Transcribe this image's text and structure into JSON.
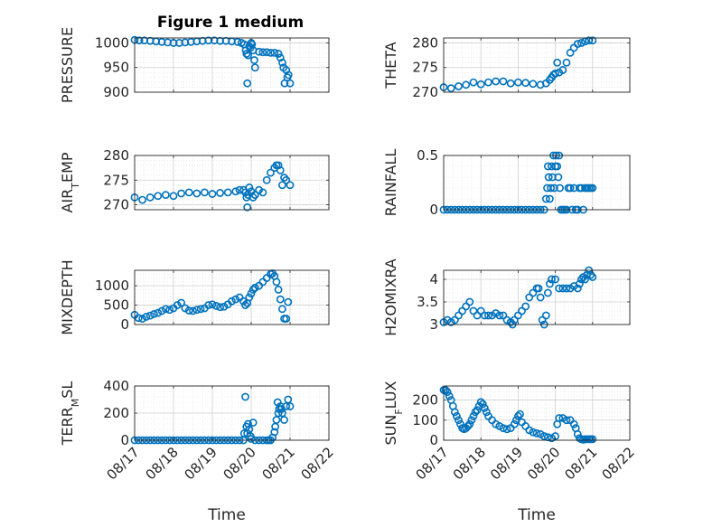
{
  "figure": {
    "title": "Figure 1 medium",
    "marker_color": "#0072BD",
    "grid": true,
    "xlabel_left": "Time",
    "xlabel_right": "Time"
  },
  "chart_data": [
    {
      "type": "scatter",
      "ylabel": "PRESSURE",
      "ylim": [
        900,
        1010
      ],
      "yticks": [
        900,
        950,
        1000
      ],
      "xlim": [
        0,
        5
      ],
      "x": [
        0,
        0.12,
        0.25,
        0.4,
        0.55,
        0.7,
        0.85,
        1,
        1.15,
        1.3,
        1.45,
        1.6,
        1.75,
        1.9,
        2.05,
        2.2,
        2.35,
        2.5,
        2.65,
        2.75,
        2.82,
        2.86,
        2.88,
        2.9,
        2.92,
        2.95,
        2.98,
        3,
        3.02,
        3.05,
        3.08,
        3.1,
        3.2,
        3.3,
        3.4,
        3.5,
        3.6,
        3.7,
        3.75,
        3.8,
        3.83,
        3.86,
        3.9,
        3.93,
        3.96,
        4
      ],
      "y": [
        1006,
        1005,
        1005,
        1004,
        1003,
        1002,
        1001,
        1000,
        1000,
        1001,
        1002,
        1003,
        1004,
        1005,
        1005,
        1004,
        1004,
        1003,
        1002,
        1000,
        997,
        985,
        978,
        918,
        975,
        993,
        990,
        1000,
        997,
        985,
        965,
        950,
        982,
        981,
        981,
        980,
        980,
        978,
        970,
        960,
        950,
        918,
        945,
        930,
        935,
        918
      ]
    },
    {
      "type": "scatter",
      "ylabel": "THETA",
      "ylim": [
        270,
        281
      ],
      "yticks": [
        270,
        275,
        280
      ],
      "xlim": [
        0,
        5
      ],
      "x": [
        0,
        0.2,
        0.4,
        0.6,
        0.8,
        1,
        1.2,
        1.4,
        1.6,
        1.8,
        2,
        2.2,
        2.4,
        2.6,
        2.75,
        2.85,
        2.9,
        2.95,
        3,
        3.05,
        3.1,
        3.2,
        3.3,
        3.4,
        3.5,
        3.6,
        3.7,
        3.8,
        3.9,
        4
      ],
      "y": [
        271,
        270.8,
        271.2,
        271.5,
        272,
        271.6,
        272,
        272.2,
        272.2,
        271.8,
        272,
        271.9,
        271.7,
        271.5,
        271.8,
        272.5,
        273,
        273.5,
        273.8,
        276,
        274,
        274.5,
        276,
        278,
        279,
        279.8,
        280,
        280.3,
        280.5,
        280.5
      ]
    },
    {
      "type": "scatter",
      "ylabel": "AIR_TEMP",
      "ylim": [
        269,
        280
      ],
      "yticks": [
        270,
        275,
        280
      ],
      "xlim": [
        0,
        5
      ],
      "x": [
        0,
        0.2,
        0.4,
        0.6,
        0.8,
        1,
        1.2,
        1.4,
        1.6,
        1.8,
        2,
        2.2,
        2.4,
        2.6,
        2.7,
        2.8,
        2.85,
        2.88,
        2.9,
        2.92,
        2.95,
        3,
        3.05,
        3.1,
        3.2,
        3.3,
        3.4,
        3.5,
        3.6,
        3.65,
        3.7,
        3.75,
        3.8,
        3.85,
        3.9,
        4
      ],
      "y": [
        271.5,
        271,
        271.5,
        271.8,
        272,
        271.8,
        272.3,
        272.5,
        272.3,
        272.5,
        272.2,
        272.4,
        272.5,
        272.7,
        273,
        273,
        272.5,
        271.5,
        269.5,
        272,
        273.5,
        272.7,
        271.5,
        272,
        273,
        272.5,
        275,
        276.5,
        277.5,
        278,
        278,
        277,
        274,
        275.5,
        275,
        274
      ]
    },
    {
      "type": "scatter",
      "ylabel": "RAINFALL",
      "ylim": [
        0,
        0.5
      ],
      "yticks": [
        0,
        0.5
      ],
      "xlim": [
        0,
        5
      ],
      "x": [
        0,
        0.1,
        0.2,
        0.3,
        0.4,
        0.5,
        0.6,
        0.7,
        0.8,
        0.9,
        1,
        1.1,
        1.2,
        1.3,
        1.4,
        1.5,
        1.6,
        1.7,
        1.8,
        1.9,
        2,
        2.1,
        2.2,
        2.3,
        2.4,
        2.5,
        2.6,
        2.7,
        2.75,
        2.78,
        2.8,
        2.82,
        2.85,
        2.88,
        2.9,
        2.92,
        2.95,
        2.97,
        3,
        3.02,
        3.05,
        3.08,
        3.1,
        3.12,
        3.15,
        3.2,
        3.25,
        3.3,
        3.35,
        3.4,
        3.45,
        3.5,
        3.55,
        3.6,
        3.65,
        3.7,
        3.75,
        3.8,
        3.85,
        3.9,
        3.95,
        4
      ],
      "y": [
        0,
        0,
        0,
        0,
        0,
        0,
        0,
        0,
        0,
        0,
        0,
        0,
        0,
        0,
        0,
        0,
        0,
        0,
        0,
        0,
        0,
        0,
        0,
        0,
        0,
        0,
        0,
        0,
        0.1,
        0.2,
        0.4,
        0.3,
        0.1,
        0.2,
        0.4,
        0.3,
        0.5,
        0.2,
        0.4,
        0.5,
        0.4,
        0.3,
        0.5,
        0.2,
        0,
        0,
        0,
        0,
        0.2,
        0.2,
        0,
        0.2,
        0,
        0,
        0.2,
        0.2,
        0,
        0.2,
        0.2,
        0.2,
        0.2,
        0.2
      ]
    },
    {
      "type": "scatter",
      "ylabel": "MIXDEPTH",
      "ylim": [
        0,
        1400
      ],
      "yticks": [
        0,
        500,
        1000
      ],
      "xlim": [
        0,
        5
      ],
      "x": [
        0,
        0.1,
        0.2,
        0.3,
        0.4,
        0.5,
        0.6,
        0.7,
        0.8,
        0.9,
        1,
        1.1,
        1.2,
        1.3,
        1.4,
        1.5,
        1.6,
        1.7,
        1.8,
        1.9,
        2,
        2.1,
        2.2,
        2.3,
        2.4,
        2.5,
        2.6,
        2.7,
        2.8,
        2.85,
        2.9,
        2.95,
        3,
        3.05,
        3.1,
        3.2,
        3.3,
        3.4,
        3.5,
        3.55,
        3.6,
        3.65,
        3.7,
        3.75,
        3.8,
        3.85,
        3.9,
        3.95
      ],
      "y": [
        250,
        170,
        150,
        200,
        230,
        270,
        300,
        350,
        400,
        380,
        420,
        500,
        560,
        420,
        360,
        350,
        380,
        400,
        420,
        500,
        520,
        480,
        450,
        460,
        520,
        600,
        650,
        700,
        600,
        500,
        550,
        700,
        800,
        900,
        950,
        1000,
        1100,
        1200,
        1300,
        1320,
        1250,
        1100,
        900,
        650,
        400,
        150,
        150,
        580
      ]
    },
    {
      "type": "scatter",
      "ylabel": "H2OMIXRA",
      "ylim": [
        3,
        4.2
      ],
      "yticks": [
        3,
        3.5,
        4
      ],
      "xlim": [
        0,
        5
      ],
      "x": [
        0,
        0.1,
        0.2,
        0.3,
        0.4,
        0.5,
        0.6,
        0.7,
        0.8,
        0.9,
        1,
        1.1,
        1.2,
        1.3,
        1.4,
        1.5,
        1.6,
        1.7,
        1.8,
        1.85,
        1.9,
        2,
        2.1,
        2.2,
        2.3,
        2.4,
        2.5,
        2.55,
        2.6,
        2.65,
        2.7,
        2.75,
        2.8,
        2.85,
        2.9,
        3,
        3.1,
        3.2,
        3.3,
        3.4,
        3.5,
        3.6,
        3.65,
        3.7,
        3.75,
        3.8,
        3.85,
        3.9,
        3.95,
        4
      ],
      "y": [
        3.05,
        3.1,
        3.05,
        3.1,
        3.2,
        3.3,
        3.4,
        3.5,
        3.3,
        3.2,
        3.3,
        3.2,
        3.2,
        3.2,
        3.25,
        3.2,
        3.2,
        3.1,
        3.05,
        3,
        3.1,
        3.2,
        3.3,
        3.4,
        3.6,
        3.7,
        3.8,
        3.8,
        3.6,
        3.1,
        3.0,
        3.2,
        3.7,
        3.9,
        4.0,
        4.0,
        3.8,
        3.8,
        3.8,
        3.8,
        3.85,
        3.8,
        3.9,
        4.0,
        4.05,
        4.0,
        4.1,
        4.2,
        4.1,
        4.05
      ]
    },
    {
      "type": "scatter",
      "ylabel": "TERR_MSL",
      "ylim": [
        0,
        400
      ],
      "yticks": [
        0,
        200,
        400
      ],
      "xlim": [
        0,
        5
      ],
      "x": [
        0,
        0.1,
        0.2,
        0.3,
        0.4,
        0.5,
        0.6,
        0.7,
        0.8,
        0.9,
        1,
        1.1,
        1.2,
        1.3,
        1.4,
        1.5,
        1.6,
        1.7,
        1.8,
        1.9,
        2,
        2.1,
        2.2,
        2.3,
        2.4,
        2.5,
        2.6,
        2.7,
        2.8,
        2.82,
        2.85,
        2.88,
        2.9,
        2.92,
        2.95,
        2.98,
        3,
        3.05,
        3.1,
        3.2,
        3.3,
        3.4,
        3.45,
        3.5,
        3.55,
        3.6,
        3.62,
        3.65,
        3.68,
        3.7,
        3.72,
        3.75,
        3.78,
        3.8,
        3.85,
        3.9,
        3.95,
        4
      ],
      "y": [
        0,
        0,
        0,
        0,
        0,
        0,
        0,
        0,
        0,
        0,
        0,
        0,
        0,
        0,
        0,
        0,
        0,
        0,
        0,
        0,
        0,
        0,
        0,
        0,
        0,
        0,
        0,
        0,
        0,
        50,
        320,
        100,
        50,
        120,
        80,
        30,
        10,
        130,
        0,
        0,
        0,
        0,
        0,
        0,
        20,
        60,
        100,
        150,
        280,
        200,
        230,
        250,
        230,
        200,
        150,
        250,
        300,
        250
      ]
    },
    {
      "type": "scatter",
      "ylabel": "SUN_FLUX",
      "ylim": [
        0,
        270
      ],
      "yticks": [
        0,
        100,
        200
      ],
      "xlim": [
        0,
        5
      ],
      "x": [
        0,
        0.05,
        0.1,
        0.15,
        0.2,
        0.25,
        0.3,
        0.35,
        0.4,
        0.45,
        0.5,
        0.55,
        0.6,
        0.65,
        0.7,
        0.75,
        0.8,
        0.85,
        0.9,
        0.95,
        1,
        1.05,
        1.1,
        1.15,
        1.2,
        1.3,
        1.4,
        1.5,
        1.6,
        1.7,
        1.8,
        1.9,
        1.95,
        2,
        2.05,
        2.1,
        2.2,
        2.3,
        2.4,
        2.5,
        2.6,
        2.7,
        2.8,
        2.9,
        3,
        3.05,
        3.1,
        3.2,
        3.3,
        3.4,
        3.5,
        3.55,
        3.6,
        3.65,
        3.7,
        3.75,
        3.8,
        3.85,
        3.9,
        3.95,
        4
      ],
      "y": [
        250,
        250,
        240,
        220,
        200,
        170,
        140,
        120,
        100,
        80,
        60,
        55,
        60,
        70,
        80,
        100,
        120,
        140,
        150,
        170,
        190,
        180,
        160,
        140,
        120,
        100,
        80,
        70,
        60,
        55,
        60,
        80,
        100,
        120,
        130,
        90,
        70,
        50,
        40,
        35,
        30,
        20,
        15,
        10,
        20,
        80,
        110,
        110,
        100,
        100,
        80,
        60,
        30,
        10,
        5,
        3,
        5,
        5,
        5,
        5,
        5
      ]
    }
  ]
}
